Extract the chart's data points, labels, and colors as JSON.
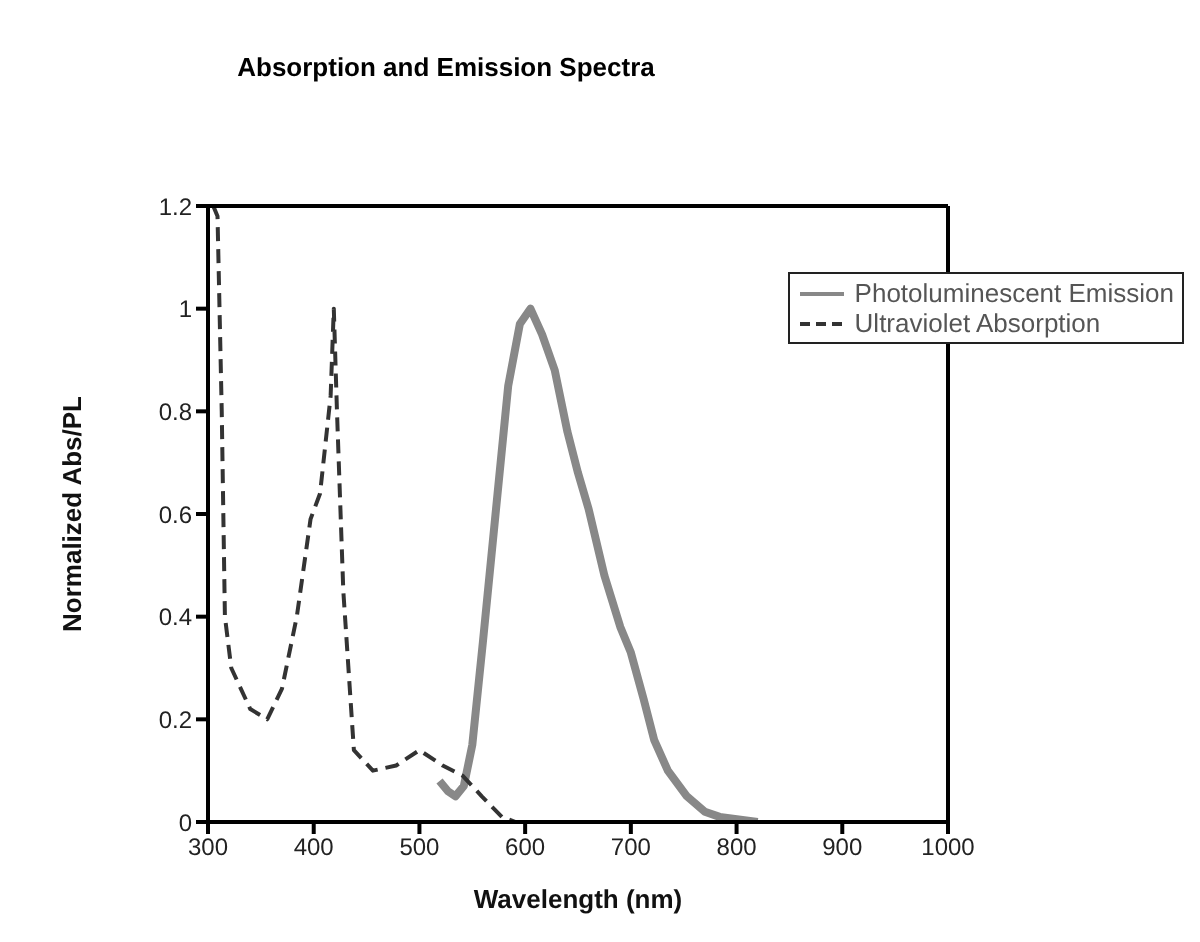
{
  "chart_data": {
    "type": "line",
    "title": "Absorption and Emission Spectra",
    "xlabel": "Wavelength (nm)",
    "ylabel": "Normalized Abs/PL",
    "xlim": [
      300,
      1000
    ],
    "xticks": [
      300,
      400,
      500,
      600,
      700,
      800,
      900,
      1000
    ],
    "ylim": [
      0,
      1.2
    ],
    "yticks": [
      0,
      0.2,
      0.4,
      0.6,
      0.8,
      1,
      1.2
    ],
    "grid": false,
    "legend": "top right",
    "marker": "none",
    "series": [
      {
        "name": "Photoluminescent Emission",
        "color": "#888888",
        "line_style": "solid",
        "x": [
          519,
          527,
          534,
          542,
          550,
          560,
          572,
          584,
          595,
          605,
          616,
          628,
          640,
          650,
          660,
          675,
          690,
          700,
          712,
          722,
          735,
          753,
          770,
          784,
          820
        ],
        "values": [
          0.08,
          0.06,
          0.05,
          0.07,
          0.15,
          0.35,
          0.6,
          0.85,
          0.97,
          1.0,
          0.95,
          0.88,
          0.76,
          0.68,
          0.61,
          0.48,
          0.38,
          0.33,
          0.24,
          0.16,
          0.1,
          0.05,
          0.02,
          0.01,
          0
        ]
      },
      {
        "name": "Ultraviolet Absorption",
        "color": "#333333",
        "line_style": "dashed",
        "x": [
          305,
          309,
          313,
          316,
          322,
          340,
          356,
          370,
          384,
          397,
          406,
          416,
          419,
          422,
          428,
          438,
          456,
          478,
          500,
          522,
          541,
          559,
          578,
          591,
          620
        ],
        "values": [
          1.2,
          1.18,
          0.8,
          0.4,
          0.3,
          0.22,
          0.2,
          0.26,
          0.4,
          0.59,
          0.64,
          0.83,
          1.0,
          0.8,
          0.45,
          0.14,
          0.1,
          0.11,
          0.14,
          0.11,
          0.09,
          0.05,
          0.01,
          0,
          0
        ]
      }
    ]
  }
}
